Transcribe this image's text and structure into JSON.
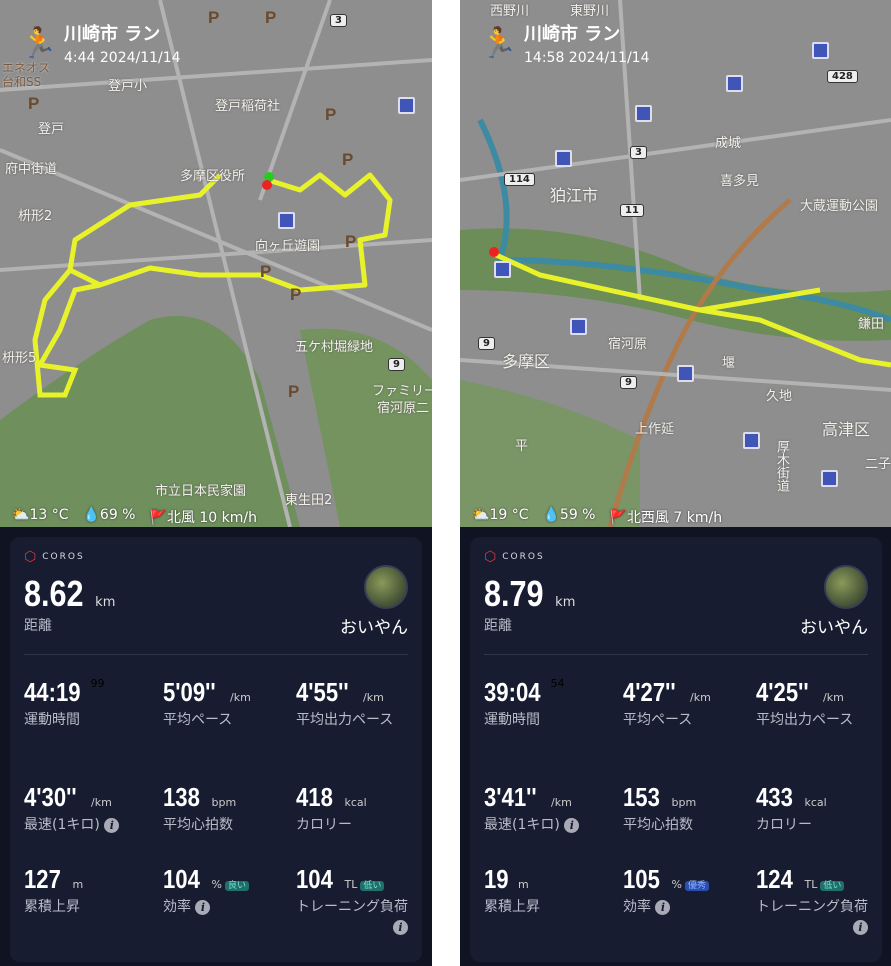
{
  "colors": {
    "route": "#e8f22a",
    "background": "#0f1322",
    "card": "#181c31",
    "coros_red": "#e0343a",
    "badge_good": "#1f6f6a",
    "badge_excellent": "#2a4fb0"
  },
  "panels": [
    {
      "title": "川崎市 ラン",
      "datetime": "4:44 2024/11/14",
      "weather": {
        "temp": "13 °C",
        "humidity": "69 %",
        "wind": "北風 10 km/h"
      },
      "map_labels": [
        "登戸",
        "府中街道",
        "枡形2",
        "枡形5",
        "多摩区役所",
        "向ヶ丘遊園",
        "登戸稲荷社",
        "五ケ村堀緑地",
        "ファミリー",
        "宿河原二",
        "市立日本民家園",
        "東生田2",
        "登戸小",
        "エネオス",
        "台和SS"
      ],
      "route_numbers": [
        "3",
        "9"
      ],
      "brand": "COROS",
      "distance": "8.62",
      "distance_unit": "km",
      "distance_label": "距離",
      "user": "おいやん",
      "stats": [
        {
          "value": "44:19",
          "sup": "99",
          "unit": "",
          "label": "運動時間"
        },
        {
          "value": "5'09''",
          "unit": "/km",
          "label": "平均ペース"
        },
        {
          "value": "4'55''",
          "unit": "/km",
          "label": "平均出力ペース"
        },
        {
          "value": "4'30''",
          "unit": "/km",
          "label": "最速(1キロ)",
          "info": true
        },
        {
          "value": "138",
          "unit": "bpm",
          "label": "平均心拍数"
        },
        {
          "value": "418",
          "unit": "kcal",
          "label": "カロリー"
        },
        {
          "value": "127",
          "unit": "m",
          "label": "累積上昇"
        },
        {
          "value": "104",
          "unit": "%",
          "badge": "良い",
          "label": "効率",
          "info": true
        },
        {
          "value": "104",
          "unit": "TL",
          "badge": "低い",
          "label": "トレーニング負荷",
          "info": true
        }
      ]
    },
    {
      "title": "川崎市 ラン",
      "datetime": "14:58 2024/11/14",
      "weather": {
        "temp": "19 °C",
        "humidity": "59 %",
        "wind": "北西風 7 km/h"
      },
      "map_labels": [
        "西野川",
        "東野川",
        "狛江市",
        "多摩区",
        "宿河原",
        "成城",
        "喜多見",
        "大蔵運動公園",
        "久地",
        "高津区",
        "上作延",
        "平",
        "堰",
        "鎌田",
        "厚木街道",
        "二子"
      ],
      "route_numbers": [
        "114",
        "3",
        "11",
        "9",
        "9",
        "428"
      ],
      "brand": "COROS",
      "distance": "8.79",
      "distance_unit": "km",
      "distance_label": "距離",
      "user": "おいやん",
      "stats": [
        {
          "value": "39:04",
          "sup": "54",
          "unit": "",
          "label": "運動時間"
        },
        {
          "value": "4'27''",
          "unit": "/km",
          "label": "平均ペース"
        },
        {
          "value": "4'25''",
          "unit": "/km",
          "label": "平均出力ペース"
        },
        {
          "value": "3'41''",
          "unit": "/km",
          "label": "最速(1キロ)",
          "info": true
        },
        {
          "value": "153",
          "unit": "bpm",
          "label": "平均心拍数"
        },
        {
          "value": "433",
          "unit": "kcal",
          "label": "カロリー"
        },
        {
          "value": "19",
          "unit": "m",
          "label": "累積上昇"
        },
        {
          "value": "105",
          "unit": "%",
          "badge": "優秀",
          "label": "効率",
          "info": true
        },
        {
          "value": "124",
          "unit": "TL",
          "badge": "低い",
          "label": "トレーニング負荷",
          "info": true
        }
      ]
    }
  ]
}
